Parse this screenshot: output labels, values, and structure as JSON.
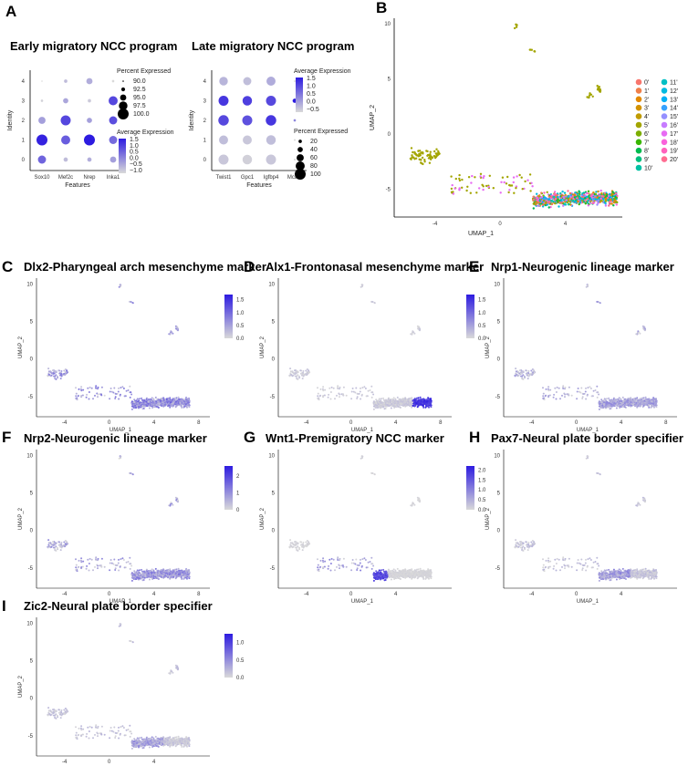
{
  "panels": [
    {
      "id": "A",
      "label": "A",
      "kind": "dotplot_pair"
    },
    {
      "id": "B",
      "label": "B",
      "kind": "umap_clusters"
    },
    {
      "id": "C",
      "label": "C",
      "kind": "umap_feature"
    },
    {
      "id": "D",
      "label": "D",
      "kind": "umap_feature"
    },
    {
      "id": "E",
      "label": "E",
      "kind": "umap_feature"
    },
    {
      "id": "F",
      "label": "F",
      "kind": "umap_feature"
    },
    {
      "id": "G",
      "label": "G",
      "kind": "umap_feature"
    },
    {
      "id": "H",
      "label": "H",
      "kind": "umap_feature"
    },
    {
      "id": "I",
      "label": "I",
      "kind": "umap_feature"
    }
  ],
  "chart_data": [
    {
      "id": "A-early",
      "type": "dotplot",
      "title": "Early migratory NCC program",
      "xlabel": "Features",
      "ylabel": "Identity",
      "features": [
        "Sox10",
        "Mef2c",
        "Nrep",
        "Inka1"
      ],
      "identities": [
        "0",
        "1",
        "2",
        "3",
        "4"
      ],
      "avg_expression": [
        [
          0.6,
          -0.6,
          -0.4,
          -0.2
        ],
        [
          1.5,
          0.7,
          1.6,
          0.5
        ],
        [
          -0.2,
          1.0,
          -0.2,
          0.9
        ],
        [
          -0.9,
          -0.3,
          -0.8,
          1.0
        ],
        [
          -1.0,
          -0.6,
          -0.4,
          -1.0
        ]
      ],
      "pct_expressed": [
        [
          97,
          93,
          93,
          95
        ],
        [
          100,
          98,
          100,
          97
        ],
        [
          96,
          99,
          94,
          97
        ],
        [
          91,
          94,
          92,
          98
        ],
        [
          90,
          92,
          95,
          91
        ]
      ],
      "legend_pct_title": "Percent Expressed",
      "legend_pct_values": [
        "90.0",
        "92.5",
        "95.0",
        "97.5",
        "100.0"
      ],
      "legend_avg_title": "Average Expression",
      "legend_avg_ticks": [
        "1.5",
        "1.0",
        "0.5",
        "0.0",
        "−0.5",
        "−1.0"
      ]
    },
    {
      "id": "A-late",
      "type": "dotplot",
      "title": "Late migratory NCC program",
      "xlabel": "Features",
      "ylabel": "Identity",
      "features": [
        "Twist1",
        "Gpc1",
        "Igfbp4",
        "Mcam"
      ],
      "identities": [
        "0",
        "1",
        "2",
        "3",
        "4"
      ],
      "avg_expression": [
        [
          -0.4,
          -0.5,
          -0.4,
          -0.6
        ],
        [
          -0.3,
          -0.4,
          -0.3,
          -0.6
        ],
        [
          1.0,
          0.9,
          1.2,
          0.3
        ],
        [
          1.2,
          1.1,
          1.0,
          1.5
        ],
        [
          -0.2,
          -0.3,
          -0.1,
          -0.6
        ]
      ],
      "pct_expressed": [
        [
          90,
          85,
          90,
          5
        ],
        [
          80,
          80,
          85,
          5
        ],
        [
          95,
          90,
          95,
          10
        ],
        [
          90,
          85,
          90,
          30
        ],
        [
          75,
          70,
          80,
          3
        ]
      ],
      "legend_avg_title": "Average Expression",
      "legend_avg_ticks": [
        "1.5",
        "1.0",
        "0.5",
        "0.0",
        "−0.5"
      ],
      "legend_pct_title": "Percent Expressed",
      "legend_pct_values": [
        "20",
        "40",
        "60",
        "80",
        "100"
      ]
    },
    {
      "id": "B",
      "type": "scatter",
      "title": "",
      "xlabel": "UMAP_1",
      "ylabel": "UMAP_2",
      "xticks": [
        "-4",
        "0",
        "4"
      ],
      "yticks": [
        "10",
        "5",
        "0",
        "-5"
      ],
      "clusters": [
        {
          "name": "0'",
          "color": "#F8766D"
        },
        {
          "name": "1'",
          "color": "#EF7F49"
        },
        {
          "name": "2'",
          "color": "#E38900"
        },
        {
          "name": "3'",
          "color": "#D39200"
        },
        {
          "name": "4'",
          "color": "#C09B00"
        },
        {
          "name": "5'",
          "color": "#A3A500"
        },
        {
          "name": "6'",
          "color": "#7CAE00"
        },
        {
          "name": "7'",
          "color": "#39B600"
        },
        {
          "name": "8'",
          "color": "#00BB4E"
        },
        {
          "name": "9'",
          "color": "#00BF7D"
        },
        {
          "name": "10'",
          "color": "#00C1A3"
        },
        {
          "name": "11'",
          "color": "#00BFC4"
        },
        {
          "name": "12'",
          "color": "#00BAE0"
        },
        {
          "name": "13'",
          "color": "#00B0F6"
        },
        {
          "name": "14'",
          "color": "#35A2FF"
        },
        {
          "name": "15'",
          "color": "#9590FF"
        },
        {
          "name": "16'",
          "color": "#C77CFF"
        },
        {
          "name": "17'",
          "color": "#E76BF3"
        },
        {
          "name": "18'",
          "color": "#FA62DB"
        },
        {
          "name": "19'",
          "color": "#FF62BC"
        },
        {
          "name": "20'",
          "color": "#FF6C91"
        }
      ]
    },
    {
      "id": "C",
      "type": "scatter",
      "title": "Dlx2-Pharyngeal arch mesenchyme marker",
      "xlabel": "UMAP_1",
      "ylabel": "UMAP_2",
      "xticks": [
        "-4",
        "0",
        "4",
        "8"
      ],
      "yticks": [
        "10",
        "5",
        "0",
        "-5"
      ],
      "scale_ticks": [
        "1.5",
        "1.0",
        "0.5",
        "0.0"
      ],
      "scale_max": 1.7,
      "expr_level": 0.55,
      "expr_region": "all"
    },
    {
      "id": "D",
      "type": "scatter",
      "title": "Alx1-Frontonasal mesenchyme marker",
      "xlabel": "UMAP_1",
      "ylabel": "UMAP_2",
      "xticks": [
        "-4",
        "0",
        "4",
        "8"
      ],
      "yticks": [
        "10",
        "5",
        "0",
        "-5"
      ],
      "scale_ticks": [
        "1.5",
        "1.0",
        "0.5",
        "0.0"
      ],
      "scale_max": 1.7,
      "expr_level": 0.7,
      "expr_region": "right-edge"
    },
    {
      "id": "E",
      "type": "scatter",
      "title": "Nrp1-Neurogenic lineage marker",
      "xlabel": "UMAP_1",
      "ylabel": "UMAP_2",
      "xticks": [
        "-4",
        "0",
        "4",
        "8"
      ],
      "yticks": [
        "10",
        "5",
        "0",
        "-5"
      ],
      "scale_ticks": [
        "1.00",
        "0.75",
        "0.50",
        "0.25",
        "0.00"
      ],
      "scale_max": 1.05,
      "expr_level": 0.35,
      "expr_region": "all"
    },
    {
      "id": "F",
      "type": "scatter",
      "title": "Nrp2-Neurogenic lineage marker",
      "xlabel": "UMAP_1",
      "ylabel": "UMAP_2",
      "xticks": [
        "-4",
        "0",
        "4",
        "8"
      ],
      "yticks": [
        "10",
        "5",
        "0",
        "-5"
      ],
      "scale_ticks": [
        "2",
        "1",
        "0"
      ],
      "scale_max": 2.6,
      "expr_level": 0.45,
      "expr_region": "all"
    },
    {
      "id": "G",
      "type": "scatter",
      "title": "Wnt1-Premigratory NCC marker",
      "xlabel": "UMAP_1",
      "ylabel": "UMAP_2",
      "xticks": [
        "-4",
        "0",
        "4"
      ],
      "yticks": [
        "10",
        "5",
        "0",
        "-5"
      ],
      "scale_ticks": [
        "2.0",
        "1.5",
        "1.0",
        "0.5",
        "0.0"
      ],
      "scale_max": 2.2,
      "expr_level": 0.6,
      "expr_region": "left-tip"
    },
    {
      "id": "H",
      "type": "scatter",
      "title": "Pax7-Neural plate border specifier",
      "xlabel": "UMAP_1",
      "ylabel": "UMAP_2",
      "xticks": [
        "-4",
        "0",
        "4"
      ],
      "yticks": [
        "10",
        "5",
        "0",
        "-5"
      ],
      "scale_ticks": [
        "1.0",
        "0.5",
        "0.0"
      ],
      "scale_max": 1.2,
      "expr_level": 0.4,
      "expr_region": "left-half"
    },
    {
      "id": "I",
      "type": "scatter",
      "title": "Zic2-Neural plate border specifier",
      "xlabel": "UMAP_1",
      "ylabel": "UMAP_2",
      "xticks": [
        "-4",
        "0",
        "4"
      ],
      "yticks": [
        "10",
        "5",
        "0",
        "-5"
      ],
      "scale_ticks": [
        "1.0",
        "0.5",
        "0.0"
      ],
      "scale_max": 1.25,
      "expr_level": 0.35,
      "expr_region": "left-half"
    }
  ]
}
